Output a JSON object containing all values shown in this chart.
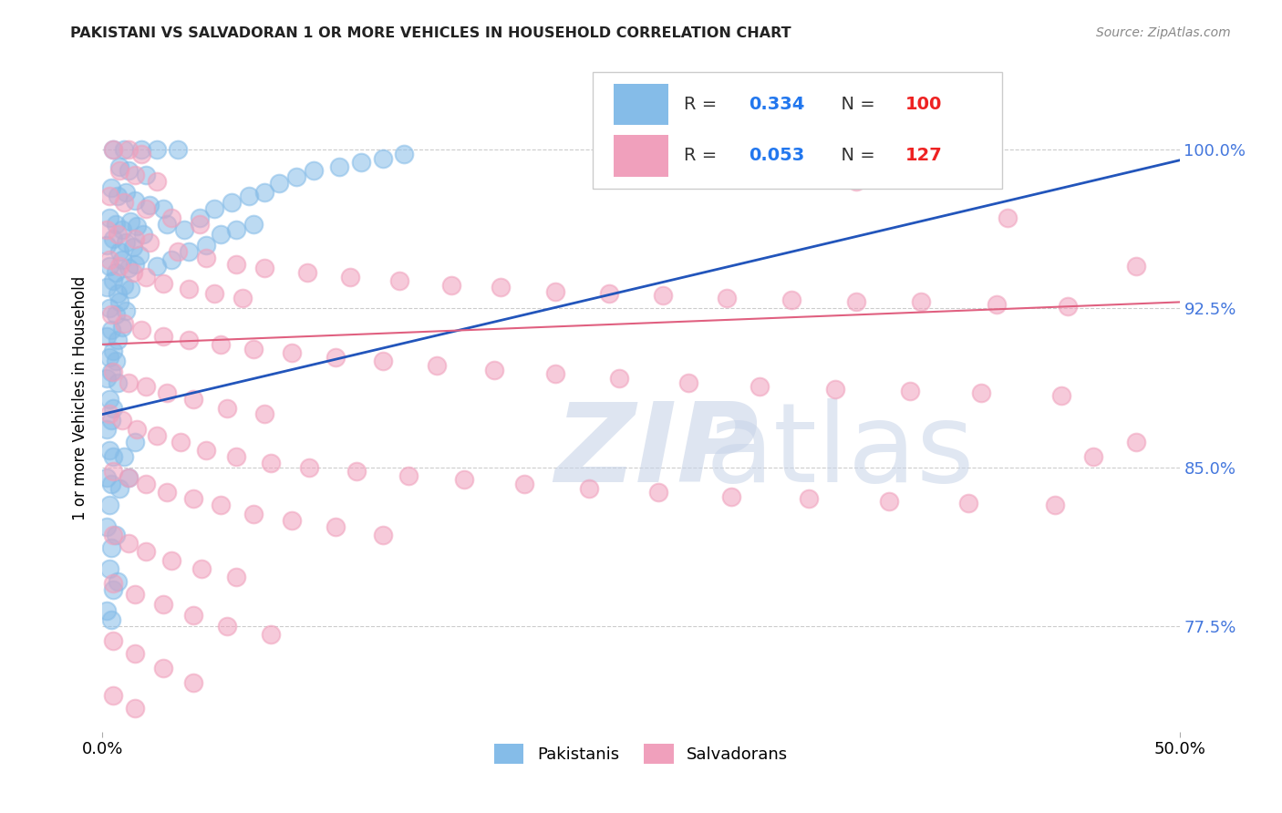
{
  "title": "PAKISTANI VS SALVADORAN 1 OR MORE VEHICLES IN HOUSEHOLD CORRELATION CHART",
  "source": "Source: ZipAtlas.com",
  "ylabel": "1 or more Vehicles in Household",
  "ytick_labels": [
    "77.5%",
    "85.0%",
    "92.5%",
    "100.0%"
  ],
  "ytick_values": [
    0.775,
    0.85,
    0.925,
    1.0
  ],
  "xlim": [
    0.0,
    0.5
  ],
  "ylim": [
    0.725,
    1.04
  ],
  "blue_color": "#85bce8",
  "pink_color": "#f0a0bc",
  "blue_line_color": "#2255bb",
  "pink_line_color": "#e06080",
  "blue_line": [
    [
      0.0,
      0.875
    ],
    [
      0.5,
      0.995
    ]
  ],
  "pink_line": [
    [
      0.0,
      0.908
    ],
    [
      0.5,
      0.928
    ]
  ],
  "watermark_zip_color": "#c8d4e8",
  "watermark_atlas_color": "#c8d4e8",
  "legend_box_color": "#ffffff",
  "legend_edge_color": "#dddddd",
  "rtick_color": "#4477dd",
  "pakistani_points": [
    [
      0.005,
      1.0
    ],
    [
      0.01,
      1.0
    ],
    [
      0.018,
      1.0
    ],
    [
      0.025,
      1.0
    ],
    [
      0.035,
      1.0
    ],
    [
      0.008,
      0.992
    ],
    [
      0.012,
      0.99
    ],
    [
      0.02,
      0.988
    ],
    [
      0.004,
      0.982
    ],
    [
      0.007,
      0.978
    ],
    [
      0.011,
      0.98
    ],
    [
      0.015,
      0.976
    ],
    [
      0.022,
      0.974
    ],
    [
      0.028,
      0.972
    ],
    [
      0.003,
      0.968
    ],
    [
      0.006,
      0.965
    ],
    [
      0.009,
      0.962
    ],
    [
      0.013,
      0.966
    ],
    [
      0.016,
      0.964
    ],
    [
      0.019,
      0.96
    ],
    [
      0.002,
      0.955
    ],
    [
      0.005,
      0.958
    ],
    [
      0.008,
      0.952
    ],
    [
      0.011,
      0.956
    ],
    [
      0.014,
      0.954
    ],
    [
      0.017,
      0.95
    ],
    [
      0.003,
      0.945
    ],
    [
      0.006,
      0.942
    ],
    [
      0.009,
      0.948
    ],
    [
      0.012,
      0.944
    ],
    [
      0.015,
      0.946
    ],
    [
      0.002,
      0.935
    ],
    [
      0.005,
      0.938
    ],
    [
      0.007,
      0.932
    ],
    [
      0.01,
      0.936
    ],
    [
      0.013,
      0.934
    ],
    [
      0.003,
      0.925
    ],
    [
      0.006,
      0.922
    ],
    [
      0.008,
      0.928
    ],
    [
      0.011,
      0.924
    ],
    [
      0.002,
      0.912
    ],
    [
      0.004,
      0.915
    ],
    [
      0.007,
      0.91
    ],
    [
      0.009,
      0.916
    ],
    [
      0.003,
      0.902
    ],
    [
      0.005,
      0.905
    ],
    [
      0.006,
      0.9
    ],
    [
      0.002,
      0.892
    ],
    [
      0.004,
      0.895
    ],
    [
      0.007,
      0.89
    ],
    [
      0.003,
      0.882
    ],
    [
      0.005,
      0.878
    ],
    [
      0.002,
      0.868
    ],
    [
      0.004,
      0.872
    ],
    [
      0.003,
      0.858
    ],
    [
      0.005,
      0.855
    ],
    [
      0.002,
      0.845
    ],
    [
      0.004,
      0.842
    ],
    [
      0.01,
      0.855
    ],
    [
      0.015,
      0.862
    ],
    [
      0.003,
      0.832
    ],
    [
      0.008,
      0.84
    ],
    [
      0.012,
      0.845
    ],
    [
      0.002,
      0.822
    ],
    [
      0.004,
      0.812
    ],
    [
      0.006,
      0.818
    ],
    [
      0.003,
      0.802
    ],
    [
      0.005,
      0.792
    ],
    [
      0.007,
      0.796
    ],
    [
      0.002,
      0.782
    ],
    [
      0.004,
      0.778
    ],
    [
      0.03,
      0.965
    ],
    [
      0.038,
      0.962
    ],
    [
      0.045,
      0.968
    ],
    [
      0.052,
      0.972
    ],
    [
      0.06,
      0.975
    ],
    [
      0.068,
      0.978
    ],
    [
      0.075,
      0.98
    ],
    [
      0.082,
      0.984
    ],
    [
      0.09,
      0.987
    ],
    [
      0.098,
      0.99
    ],
    [
      0.11,
      0.992
    ],
    [
      0.12,
      0.994
    ],
    [
      0.13,
      0.996
    ],
    [
      0.14,
      0.998
    ],
    [
      0.025,
      0.945
    ],
    [
      0.032,
      0.948
    ],
    [
      0.04,
      0.952
    ],
    [
      0.048,
      0.955
    ],
    [
      0.055,
      0.96
    ],
    [
      0.062,
      0.962
    ],
    [
      0.07,
      0.965
    ]
  ],
  "salvadoran_points": [
    [
      0.005,
      1.0
    ],
    [
      0.012,
      1.0
    ],
    [
      0.018,
      0.998
    ],
    [
      0.008,
      0.99
    ],
    [
      0.015,
      0.988
    ],
    [
      0.025,
      0.985
    ],
    [
      0.003,
      0.978
    ],
    [
      0.01,
      0.975
    ],
    [
      0.02,
      0.972
    ],
    [
      0.032,
      0.968
    ],
    [
      0.045,
      0.965
    ],
    [
      0.002,
      0.962
    ],
    [
      0.007,
      0.96
    ],
    [
      0.015,
      0.958
    ],
    [
      0.022,
      0.956
    ],
    [
      0.035,
      0.952
    ],
    [
      0.048,
      0.949
    ],
    [
      0.062,
      0.946
    ],
    [
      0.075,
      0.944
    ],
    [
      0.095,
      0.942
    ],
    [
      0.115,
      0.94
    ],
    [
      0.138,
      0.938
    ],
    [
      0.162,
      0.936
    ],
    [
      0.185,
      0.935
    ],
    [
      0.21,
      0.933
    ],
    [
      0.235,
      0.932
    ],
    [
      0.26,
      0.931
    ],
    [
      0.29,
      0.93
    ],
    [
      0.32,
      0.929
    ],
    [
      0.35,
      0.928
    ],
    [
      0.38,
      0.928
    ],
    [
      0.415,
      0.927
    ],
    [
      0.448,
      0.926
    ],
    [
      0.003,
      0.948
    ],
    [
      0.008,
      0.945
    ],
    [
      0.014,
      0.942
    ],
    [
      0.02,
      0.94
    ],
    [
      0.028,
      0.937
    ],
    [
      0.04,
      0.934
    ],
    [
      0.052,
      0.932
    ],
    [
      0.065,
      0.93
    ],
    [
      0.004,
      0.922
    ],
    [
      0.01,
      0.918
    ],
    [
      0.018,
      0.915
    ],
    [
      0.028,
      0.912
    ],
    [
      0.04,
      0.91
    ],
    [
      0.055,
      0.908
    ],
    [
      0.07,
      0.906
    ],
    [
      0.088,
      0.904
    ],
    [
      0.108,
      0.902
    ],
    [
      0.13,
      0.9
    ],
    [
      0.155,
      0.898
    ],
    [
      0.182,
      0.896
    ],
    [
      0.21,
      0.894
    ],
    [
      0.24,
      0.892
    ],
    [
      0.272,
      0.89
    ],
    [
      0.305,
      0.888
    ],
    [
      0.34,
      0.887
    ],
    [
      0.375,
      0.886
    ],
    [
      0.408,
      0.885
    ],
    [
      0.445,
      0.884
    ],
    [
      0.005,
      0.895
    ],
    [
      0.012,
      0.89
    ],
    [
      0.02,
      0.888
    ],
    [
      0.03,
      0.885
    ],
    [
      0.042,
      0.882
    ],
    [
      0.058,
      0.878
    ],
    [
      0.075,
      0.875
    ],
    [
      0.003,
      0.875
    ],
    [
      0.009,
      0.872
    ],
    [
      0.016,
      0.868
    ],
    [
      0.025,
      0.865
    ],
    [
      0.036,
      0.862
    ],
    [
      0.048,
      0.858
    ],
    [
      0.062,
      0.855
    ],
    [
      0.078,
      0.852
    ],
    [
      0.096,
      0.85
    ],
    [
      0.118,
      0.848
    ],
    [
      0.142,
      0.846
    ],
    [
      0.168,
      0.844
    ],
    [
      0.196,
      0.842
    ],
    [
      0.226,
      0.84
    ],
    [
      0.258,
      0.838
    ],
    [
      0.292,
      0.836
    ],
    [
      0.328,
      0.835
    ],
    [
      0.365,
      0.834
    ],
    [
      0.402,
      0.833
    ],
    [
      0.442,
      0.832
    ],
    [
      0.005,
      0.848
    ],
    [
      0.012,
      0.845
    ],
    [
      0.02,
      0.842
    ],
    [
      0.03,
      0.838
    ],
    [
      0.042,
      0.835
    ],
    [
      0.055,
      0.832
    ],
    [
      0.07,
      0.828
    ],
    [
      0.088,
      0.825
    ],
    [
      0.108,
      0.822
    ],
    [
      0.13,
      0.818
    ],
    [
      0.005,
      0.818
    ],
    [
      0.012,
      0.814
    ],
    [
      0.02,
      0.81
    ],
    [
      0.032,
      0.806
    ],
    [
      0.046,
      0.802
    ],
    [
      0.062,
      0.798
    ],
    [
      0.005,
      0.795
    ],
    [
      0.015,
      0.79
    ],
    [
      0.028,
      0.785
    ],
    [
      0.042,
      0.78
    ],
    [
      0.058,
      0.775
    ],
    [
      0.078,
      0.771
    ],
    [
      0.005,
      0.768
    ],
    [
      0.015,
      0.762
    ],
    [
      0.028,
      0.755
    ],
    [
      0.042,
      0.748
    ],
    [
      0.005,
      0.742
    ],
    [
      0.015,
      0.736
    ],
    [
      0.35,
      0.985
    ],
    [
      0.42,
      0.968
    ],
    [
      0.48,
      0.945
    ],
    [
      0.46,
      0.855
    ],
    [
      0.48,
      0.862
    ]
  ]
}
